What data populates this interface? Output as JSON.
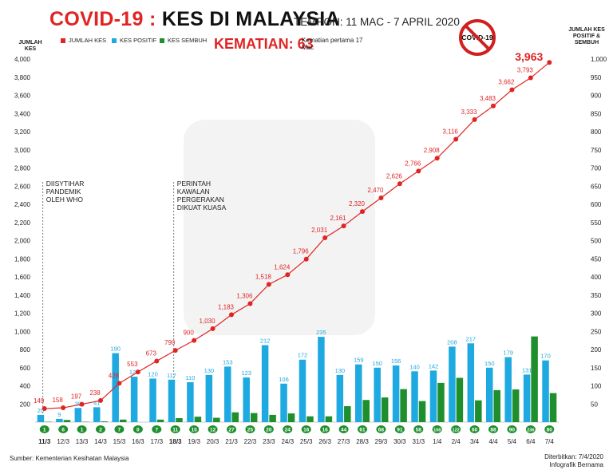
{
  "header": {
    "title_left": "COVID-19 :",
    "title_right": "KES DI MALAYSIA",
    "period": "TEMPOH: 11 MAC - 7 APRIL 2020",
    "deaths": "KEMATIAN: 63",
    "deaths_note": "Kematian pertama 17 Mac",
    "badge_text": "COVID-19"
  },
  "legend": {
    "total": "JUMLAH KES",
    "positive": "KES POSITIF",
    "recovered": "KES SEMBUH"
  },
  "axes": {
    "left_title": "JUMLAH KES",
    "right_title": "JUMLAH KES POSITIF & SEMBUH"
  },
  "annotations": {
    "who": [
      "DIISYTIHAR",
      "PANDEMIK",
      "OLEH WHO"
    ],
    "mco": [
      "PERINTAH",
      "KAWALAN",
      "PERGERAKAN",
      "DIKUAT KUASA"
    ]
  },
  "footer": {
    "source": "Sumber: Kementerian Kesihatan Malaysia",
    "published": "Diterbitkan: 7/4/2020",
    "credit": "Infografik Bernama"
  },
  "colors": {
    "total": "#e02424",
    "positive": "#1fa9e1",
    "recovered": "#1f8f2e"
  },
  "chart_data": {
    "type": "bar",
    "categories": [
      "11/3",
      "12/3",
      "13/3",
      "14/3",
      "15/3",
      "16/3",
      "17/3",
      "18/3",
      "19/3",
      "20/3",
      "21/3",
      "22/3",
      "23/3",
      "24/3",
      "25/3",
      "26/3",
      "27/3",
      "28/3",
      "29/3",
      "30/3",
      "31/3",
      "1/4",
      "2/4",
      "3/4",
      "4/4",
      "5/4",
      "6/4",
      "7/4"
    ],
    "bold_categories": [
      "11/3",
      "18/3"
    ],
    "series": [
      {
        "name": "JUMLAH KES",
        "type": "line",
        "axis": "left",
        "values": [
          149,
          158,
          197,
          238,
          428,
          553,
          673,
          790,
          900,
          1030,
          1183,
          1306,
          1518,
          1624,
          1796,
          2031,
          2161,
          2320,
          2470,
          2626,
          2766,
          2908,
          3116,
          3333,
          3483,
          3662,
          3793,
          3963
        ]
      },
      {
        "name": "KES POSITIF",
        "type": "bar",
        "axis": "right",
        "values": [
          20,
          9,
          39,
          41,
          190,
          125,
          120,
          117,
          110,
          130,
          153,
          123,
          212,
          106,
          172,
          235,
          130,
          159,
          150,
          156,
          140,
          142,
          208,
          217,
          150,
          179,
          131,
          170
        ]
      },
      {
        "name": "KES SEMBUH",
        "type": "bar",
        "axis": "right",
        "values": [
          1,
          6,
          1,
          2,
          7,
          0,
          7,
          11,
          15,
          12,
          27,
          25,
          20,
          24,
          16,
          16,
          44,
          61,
          68,
          91,
          58,
          108,
          122,
          60,
          88,
          90,
          236,
          80
        ]
      }
    ],
    "left_axis": {
      "min": 0,
      "max": 4000,
      "ticks": [
        200,
        400,
        600,
        800,
        1000,
        1200,
        1400,
        1600,
        1800,
        2000,
        2200,
        2400,
        2600,
        2800,
        3000,
        3200,
        3400,
        3600,
        3800,
        4000
      ]
    },
    "right_axis": {
      "min": 0,
      "max": 1000,
      "ticks": [
        50,
        100,
        150,
        200,
        250,
        300,
        350,
        400,
        450,
        500,
        550,
        600,
        650,
        700,
        750,
        800,
        850,
        900,
        950,
        1000
      ]
    },
    "grid": false,
    "legend_position": "top-left"
  }
}
